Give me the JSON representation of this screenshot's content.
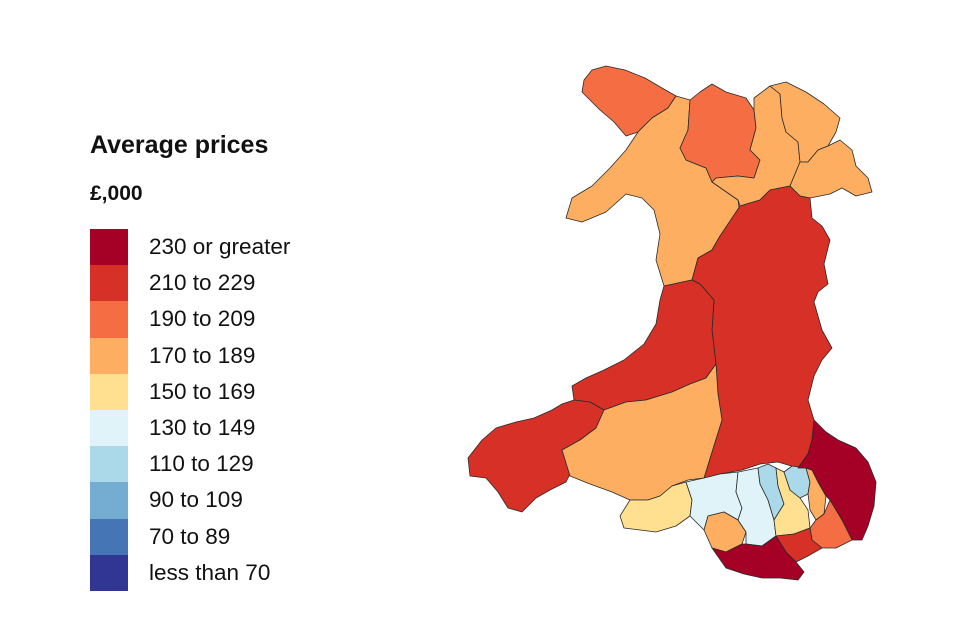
{
  "legend": {
    "title": "Average prices",
    "unit": "£,000",
    "bands": [
      {
        "label": "230 or greater",
        "color": "#a50026"
      },
      {
        "label": "210 to 229",
        "color": "#d73027"
      },
      {
        "label": "190 to 209",
        "color": "#f46d43"
      },
      {
        "label": "170 to 189",
        "color": "#fdae61"
      },
      {
        "label": "150 to 169",
        "color": "#fee090"
      },
      {
        "label": "130 to 149",
        "color": "#e0f3f8"
      },
      {
        "label": "110 to 129",
        "color": "#abd9e9"
      },
      {
        "label": "90 to 109",
        "color": "#74add1"
      },
      {
        "label": "70 to 89",
        "color": "#4575b4"
      },
      {
        "label": "less than 70",
        "color": "#313695"
      }
    ]
  },
  "map": {
    "regions": [
      {
        "id": "isle-of-anglesey",
        "band": "190 to 209"
      },
      {
        "id": "gwynedd",
        "band": "170 to 189"
      },
      {
        "id": "conwy",
        "band": "190 to 209"
      },
      {
        "id": "denbighshire",
        "band": "170 to 189"
      },
      {
        "id": "flintshire",
        "band": "170 to 189"
      },
      {
        "id": "wrexham",
        "band": "170 to 189"
      },
      {
        "id": "powys",
        "band": "210 to 229"
      },
      {
        "id": "ceredigion",
        "band": "210 to 229"
      },
      {
        "id": "pembrokeshire",
        "band": "210 to 229"
      },
      {
        "id": "carmarthenshire",
        "band": "170 to 189"
      },
      {
        "id": "swansea",
        "band": "150 to 169"
      },
      {
        "id": "neath-port-talbot",
        "band": "130 to 149"
      },
      {
        "id": "bridgend",
        "band": "170 to 189"
      },
      {
        "id": "rhondda-cynon-taf",
        "band": "130 to 149"
      },
      {
        "id": "merthyr-tydfil",
        "band": "110 to 129"
      },
      {
        "id": "caerphilly",
        "band": "150 to 169"
      },
      {
        "id": "blaenau-gwent",
        "band": "110 to 129"
      },
      {
        "id": "torfaen",
        "band": "170 to 189"
      },
      {
        "id": "monmouthshire",
        "band": "230 or greater"
      },
      {
        "id": "newport",
        "band": "190 to 209"
      },
      {
        "id": "cardiff",
        "band": "210 to 229"
      },
      {
        "id": "vale-of-glamorgan",
        "band": "230 or greater"
      }
    ]
  }
}
